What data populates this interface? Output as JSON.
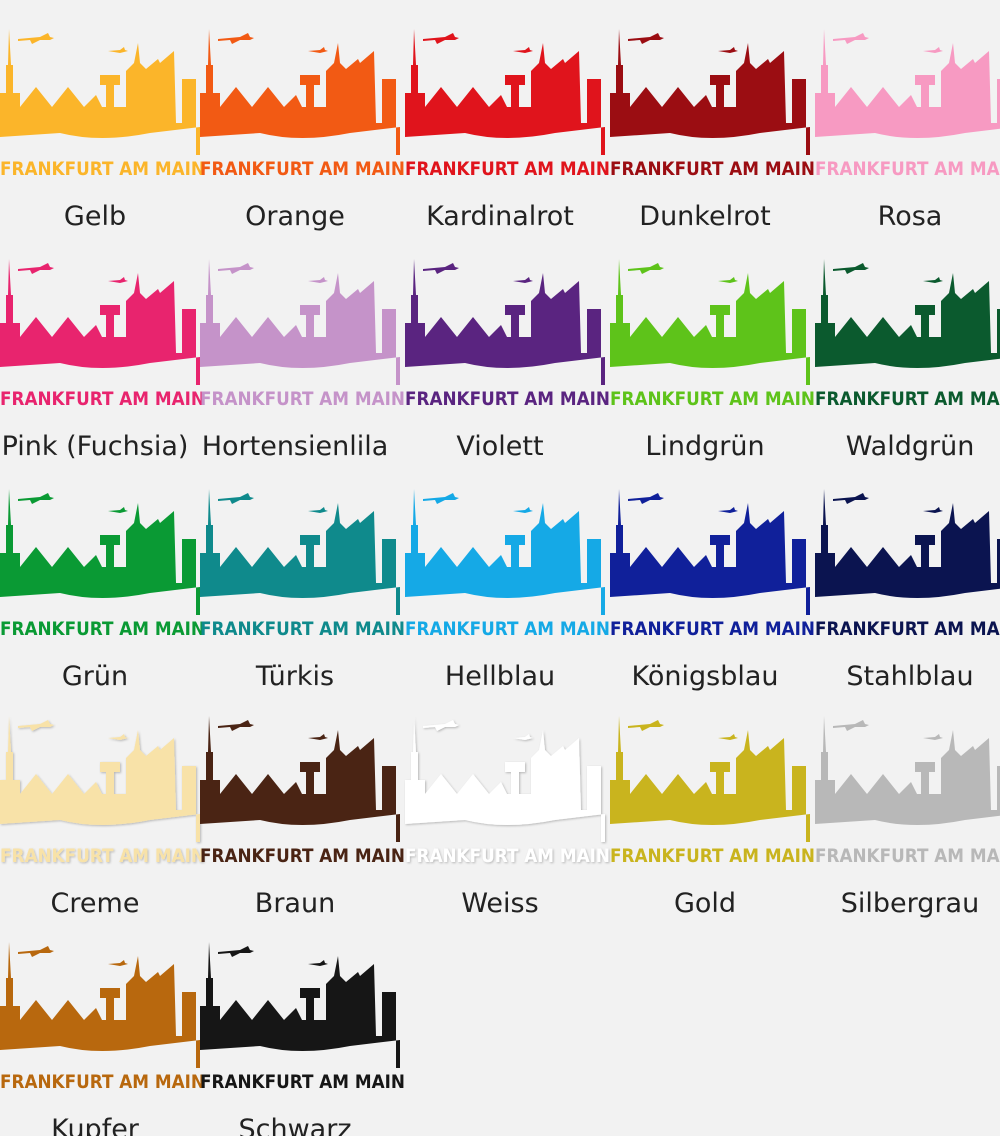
{
  "skyline_text": "FRANKFURT AM MAIN",
  "items": [
    {
      "label": "Gelb",
      "color": "#fbb52a"
    },
    {
      "label": "Orange",
      "color": "#f25a14"
    },
    {
      "label": "Kardinalrot",
      "color": "#e0141c"
    },
    {
      "label": "Dunkelrot",
      "color": "#9b0d12"
    },
    {
      "label": "Rosa",
      "color": "#f79ac2"
    },
    {
      "label": "Pink (Fuchsia)",
      "color": "#e8246e"
    },
    {
      "label": "Hortensienlila",
      "color": "#c593c9"
    },
    {
      "label": "Violett",
      "color": "#5a2480"
    },
    {
      "label": "Lindgrün",
      "color": "#5ec31a"
    },
    {
      "label": "Waldgrün",
      "color": "#0b5a2e"
    },
    {
      "label": "Grün",
      "color": "#0a9a34"
    },
    {
      "label": "Türkis",
      "color": "#0f8a8c"
    },
    {
      "label": "Hellblau",
      "color": "#15a9e6"
    },
    {
      "label": "Königsblau",
      "color": "#10209a"
    },
    {
      "label": "Stahlblau",
      "color": "#0b1450"
    },
    {
      "label": "Creme",
      "color": "#f8e2a8"
    },
    {
      "label": "Braun",
      "color": "#4a2414"
    },
    {
      "label": "Weiss",
      "color": "#ffffff"
    },
    {
      "label": "Gold",
      "color": "#c9b41e"
    },
    {
      "label": "Silbergrau",
      "color": "#b8b8b8"
    },
    {
      "label": "Kupfer",
      "color": "#b8680e"
    },
    {
      "label": "Schwarz",
      "color": "#161616"
    }
  ]
}
